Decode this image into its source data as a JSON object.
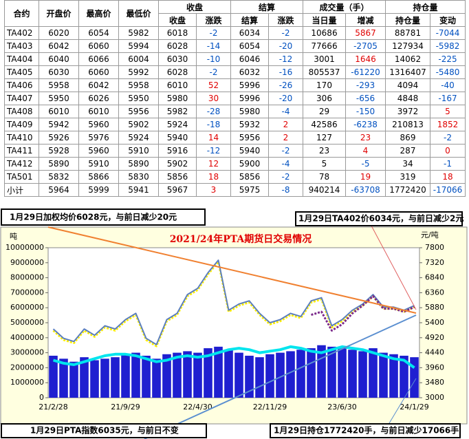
{
  "table": {
    "group_headers": [
      "收盘",
      "结算",
      "成交量（手）",
      "持仓量"
    ],
    "headers": [
      "合约",
      "开盘价",
      "最高价",
      "最低价",
      "收盘",
      "涨跌",
      "结算",
      "涨跌",
      "当日量",
      "增减",
      "持仓量",
      "变动"
    ],
    "rows": [
      [
        "TA402",
        6020,
        6054,
        5982,
        6018,
        -2,
        6034,
        -2,
        10686,
        5867,
        88781,
        -7044
      ],
      [
        "TA403",
        6042,
        6060,
        5994,
        6028,
        -14,
        6054,
        -20,
        77666,
        -2705,
        127934,
        -5982
      ],
      [
        "TA404",
        6040,
        6066,
        6004,
        6030,
        -10,
        6046,
        -12,
        3001,
        1646,
        14062,
        -225
      ],
      [
        "TA405",
        6030,
        6060,
        5992,
        6028,
        -2,
        6032,
        -16,
        805537,
        -61220,
        1316407,
        -5480
      ],
      [
        "TA406",
        5958,
        6042,
        5958,
        6010,
        52,
        5996,
        -26,
        170,
        -293,
        4094,
        -40
      ],
      [
        "TA407",
        5950,
        6026,
        5950,
        5980,
        30,
        5996,
        -20,
        306,
        -656,
        4848,
        -167
      ],
      [
        "TA408",
        6010,
        6010,
        5956,
        5982,
        -28,
        5980,
        -4,
        29,
        -150,
        3972,
        5
      ],
      [
        "TA409",
        5942,
        5960,
        5902,
        5924,
        -18,
        5932,
        2,
        42586,
        -6238,
        210813,
        1852
      ],
      [
        "TA410",
        5926,
        5976,
        5924,
        5940,
        14,
        5956,
        2,
        127,
        23,
        869,
        -2
      ],
      [
        "TA411",
        5928,
        5960,
        5910,
        5916,
        -12,
        5940,
        -2,
        23,
        4,
        287,
        0
      ],
      [
        "TA412",
        5890,
        5910,
        5890,
        5902,
        12,
        5900,
        -4,
        5,
        -5,
        34,
        -1
      ],
      [
        "TA501",
        5832,
        5866,
        5830,
        5856,
        18,
        5856,
        -2,
        78,
        19,
        319,
        18
      ],
      [
        "小计",
        5964,
        5999,
        5941,
        5967,
        3,
        5975,
        -8,
        940214,
        -63708,
        1772420,
        -17066
      ]
    ]
  },
  "chart_data": {
    "type": "combo",
    "title": "2021/24年PTA期货日交易情况",
    "y_label": "吨",
    "y2_label": "元/吨",
    "annotations": [
      "1月29日加权均价6028元，与前日减少20元",
      "1月29日TA402价6034元，与前日减少2元",
      "1月29日PTA指数6035元，与前日不变",
      "1月29日持仓1772420手，与前日减少17066手"
    ],
    "categories": [
      "21/2/28",
      null,
      null,
      null,
      null,
      null,
      null,
      "21/9/29",
      null,
      null,
      null,
      null,
      null,
      null,
      "22/4/30",
      null,
      null,
      null,
      null,
      null,
      null,
      "22/11/29",
      null,
      null,
      null,
      null,
      null,
      null,
      "23/6/30",
      null,
      null,
      null,
      null,
      null,
      null,
      "24/1/29"
    ],
    "ylim": [
      0,
      10000000
    ],
    "yticks": [
      0,
      1000000,
      2000000,
      3000000,
      4000000,
      5000000,
      6000000,
      7000000,
      8000000,
      9000000,
      10000000
    ],
    "y2lim": [
      3000,
      7800
    ],
    "y2ticks": [
      3000,
      3480,
      3960,
      4440,
      4920,
      5400,
      5880,
      6360,
      6840,
      7320,
      7800
    ],
    "series": [
      {
        "kind": "bar",
        "color": "#1f1fd0",
        "values": [
          2800000,
          2600000,
          2400000,
          2700000,
          2500000,
          2600000,
          2700000,
          2900000,
          3000000,
          2800000,
          2600000,
          2900000,
          3000000,
          3100000,
          3000000,
          3300000,
          3400000,
          3200000,
          3000000,
          2800000,
          2700000,
          2900000,
          3000000,
          3100000,
          3200000,
          3300000,
          3500000,
          3400000,
          3300000,
          3200000,
          3100000,
          3300000,
          3000000,
          2900000,
          2800000,
          2700000
        ]
      },
      {
        "kind": "line",
        "color": "#00e5ee",
        "width": 4,
        "values": [
          2500000,
          2300000,
          2200000,
          2400000,
          2600000,
          2800000,
          2900000,
          2900000,
          2800000,
          2600000,
          2400000,
          2500000,
          2700000,
          2800000,
          2700000,
          2800000,
          3000000,
          3200000,
          3300000,
          3200000,
          3000000,
          3100000,
          3200000,
          3400000,
          3300000,
          3100000,
          3000000,
          3200000,
          3400000,
          3300000,
          3200000,
          3000000,
          2800000,
          2600000,
          2500000,
          2000000
        ]
      },
      {
        "kind": "line",
        "axis": "y2",
        "color": "#ffee00",
        "width": 3,
        "dash": "3 2",
        "values": [
          5150,
          4850,
          4750,
          5150,
          4950,
          5250,
          5150,
          5450,
          5650,
          4850,
          4650,
          5450,
          5650,
          6250,
          6450,
          6950,
          7350,
          5750,
          5950,
          6050,
          5650,
          5350,
          5450,
          5650,
          5550,
          6050,
          6150,
          5250,
          5450,
          5750,
          5950,
          6250,
          5850,
          5850,
          5750,
          5900
        ]
      },
      {
        "kind": "line",
        "axis": "y2",
        "color": "#5b7fbf",
        "width": 2,
        "values": [
          5200,
          4900,
          4800,
          5200,
          5000,
          5300,
          5200,
          5500,
          5700,
          4900,
          4700,
          5500,
          5700,
          6300,
          6500,
          7000,
          7400,
          5800,
          6000,
          6100,
          5700,
          5400,
          5500,
          5700,
          5600,
          6100,
          6200,
          5300,
          5500,
          5800,
          6000,
          6300,
          5900,
          5900,
          5800,
          5950
        ]
      },
      {
        "kind": "line",
        "axis": "y2",
        "color": "#7b2a8b",
        "width": 3,
        "dash": "3 2",
        "values": [
          null,
          null,
          null,
          null,
          null,
          null,
          null,
          null,
          null,
          null,
          null,
          null,
          null,
          null,
          null,
          null,
          null,
          null,
          null,
          null,
          null,
          null,
          null,
          null,
          null,
          5650,
          5750,
          5150,
          5350,
          5700,
          5950,
          6250,
          5850,
          5850,
          5750,
          5900
        ]
      }
    ]
  }
}
